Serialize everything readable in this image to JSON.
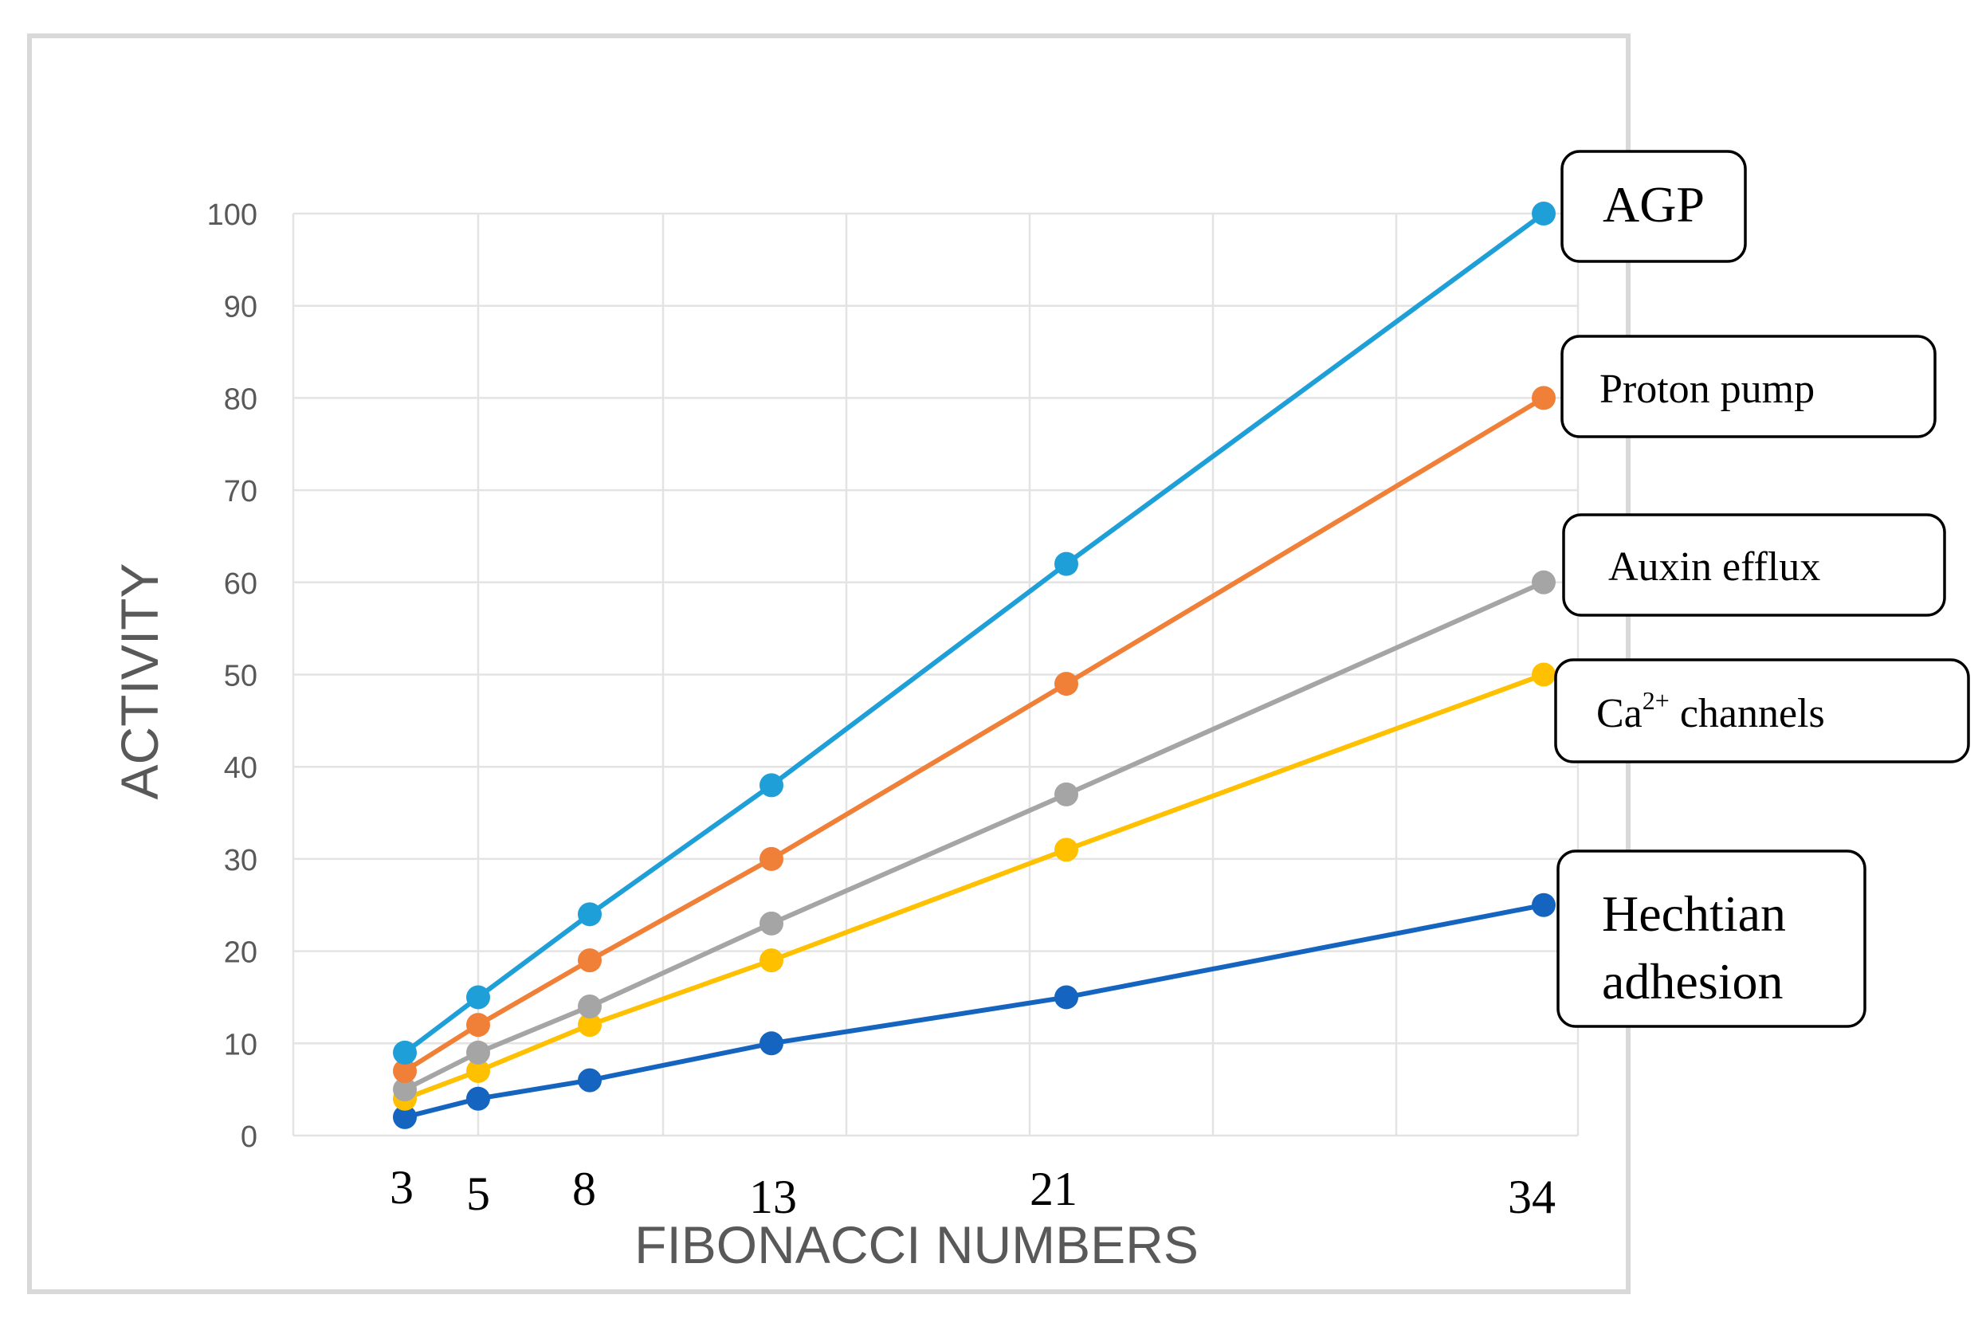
{
  "chart_data": {
    "type": "line",
    "title": "",
    "xlabel": "FIBONACCI NUMBERS",
    "ylabel": "ACTIVITY",
    "ylim": [
      0,
      100
    ],
    "yticks": [
      0,
      10,
      20,
      30,
      40,
      50,
      60,
      70,
      80,
      90,
      100
    ],
    "x": [
      3,
      5,
      8,
      13,
      21,
      34
    ],
    "x_tick_labels": [
      "3",
      "5",
      "8",
      "13",
      "21",
      "34"
    ],
    "grid": true,
    "legend": "labels at right end of each series",
    "series": [
      {
        "name": "AGP",
        "label_lines": [
          "AGP"
        ],
        "color": "#1f9fd8",
        "values": [
          9,
          15,
          24,
          38,
          62,
          100
        ]
      },
      {
        "name": "Proton pump",
        "label_lines": [
          "Proton pump"
        ],
        "color": "#f07f37",
        "values": [
          7,
          12,
          19,
          30,
          49,
          80
        ]
      },
      {
        "name": "Auxin efflux",
        "label_lines": [
          "Auxin efflux"
        ],
        "color": "#a5a5a5",
        "values": [
          5,
          9,
          14,
          23,
          37,
          60
        ]
      },
      {
        "name": "Ca2+ channels",
        "label_base": "Ca",
        "label_sup": "2+",
        "label_rest": " channels",
        "color": "#ffc000",
        "values": [
          4,
          7,
          12,
          19,
          31,
          50
        ]
      },
      {
        "name": "Hechtian adhesion",
        "label_lines": [
          "Hechtian",
          "adhesion"
        ],
        "color": "#1565c0",
        "values": [
          2,
          4,
          6,
          10,
          15,
          25
        ]
      }
    ]
  }
}
